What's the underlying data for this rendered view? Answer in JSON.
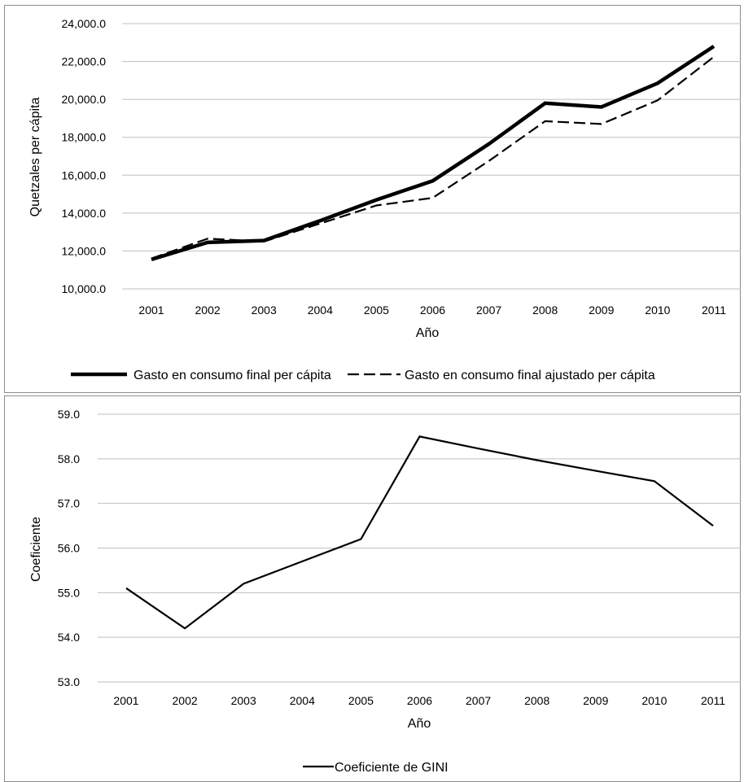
{
  "chart_data": [
    {
      "type": "line",
      "title": "",
      "xlabel": "Año",
      "ylabel": "Quetzales per cápita",
      "categories": [
        "2001",
        "2002",
        "2003",
        "2004",
        "2005",
        "2006",
        "2007",
        "2008",
        "2009",
        "2010",
        "2011"
      ],
      "ylim": [
        10000,
        24000
      ],
      "yticks": [
        "10,000.0",
        "12,000.0",
        "14,000.0",
        "16,000.0",
        "18,000.0",
        "20,000.0",
        "22,000.0",
        "24,000.0"
      ],
      "grid": true,
      "legend_position": "bottom",
      "series": [
        {
          "name": "Gasto en consumo final per cápita",
          "style": "solid-thick",
          "color": "#000000",
          "values": [
            11550,
            12450,
            12550,
            13600,
            14700,
            15700,
            17650,
            19800,
            19600,
            20850,
            22800
          ]
        },
        {
          "name": "Gasto en consumo final ajustado per cápita",
          "style": "dashed",
          "color": "#000000",
          "values": [
            11600,
            12650,
            12500,
            13450,
            14400,
            14800,
            16750,
            18850,
            18700,
            19950,
            22250
          ]
        }
      ]
    },
    {
      "type": "line",
      "title": "",
      "xlabel": "Año",
      "ylabel": "Coeficiente",
      "categories": [
        "2001",
        "2002",
        "2003",
        "2004",
        "2005",
        "2006",
        "2007",
        "2008",
        "2009",
        "2010",
        "2011"
      ],
      "ylim": [
        53,
        59
      ],
      "yticks": [
        "53.0",
        "54.0",
        "55.0",
        "56.0",
        "57.0",
        "58.0",
        "59.0"
      ],
      "grid": true,
      "legend_position": "bottom",
      "series": [
        {
          "name": "Coeficiente de GINI",
          "style": "solid",
          "color": "#000000",
          "values": [
            55.1,
            54.2,
            55.2,
            55.7,
            56.2,
            58.5,
            58.23,
            57.97,
            57.73,
            57.5,
            56.5
          ]
        }
      ]
    }
  ]
}
